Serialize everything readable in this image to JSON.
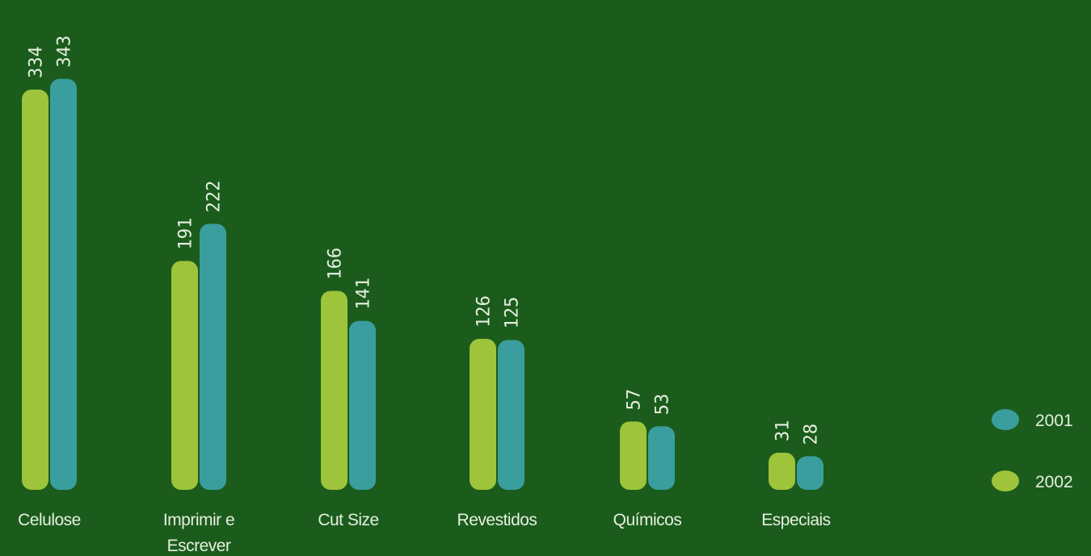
{
  "chart_data": {
    "type": "bar",
    "categories": [
      [
        "Celulose"
      ],
      [
        "Imprimir e",
        "Escrever"
      ],
      [
        "Cut Size"
      ],
      [
        "Revestidos"
      ],
      [
        "Químicos"
      ],
      [
        "Especiais"
      ]
    ],
    "series": [
      {
        "name": "2002",
        "color": "#9dc43b",
        "values": [
          334,
          191,
          166,
          126,
          57,
          31
        ]
      },
      {
        "name": "2001",
        "color": "#3a9e9e",
        "values": [
          343,
          222,
          141,
          125,
          53,
          28
        ]
      }
    ],
    "legend_order": [
      "2001",
      "2002"
    ],
    "legend_position": "bottom-right",
    "title": "",
    "xlabel": "",
    "ylabel": "",
    "ylim": [
      0,
      343
    ],
    "grid": false,
    "background": "#1b5c1c",
    "label_color": "#e6efe0"
  }
}
